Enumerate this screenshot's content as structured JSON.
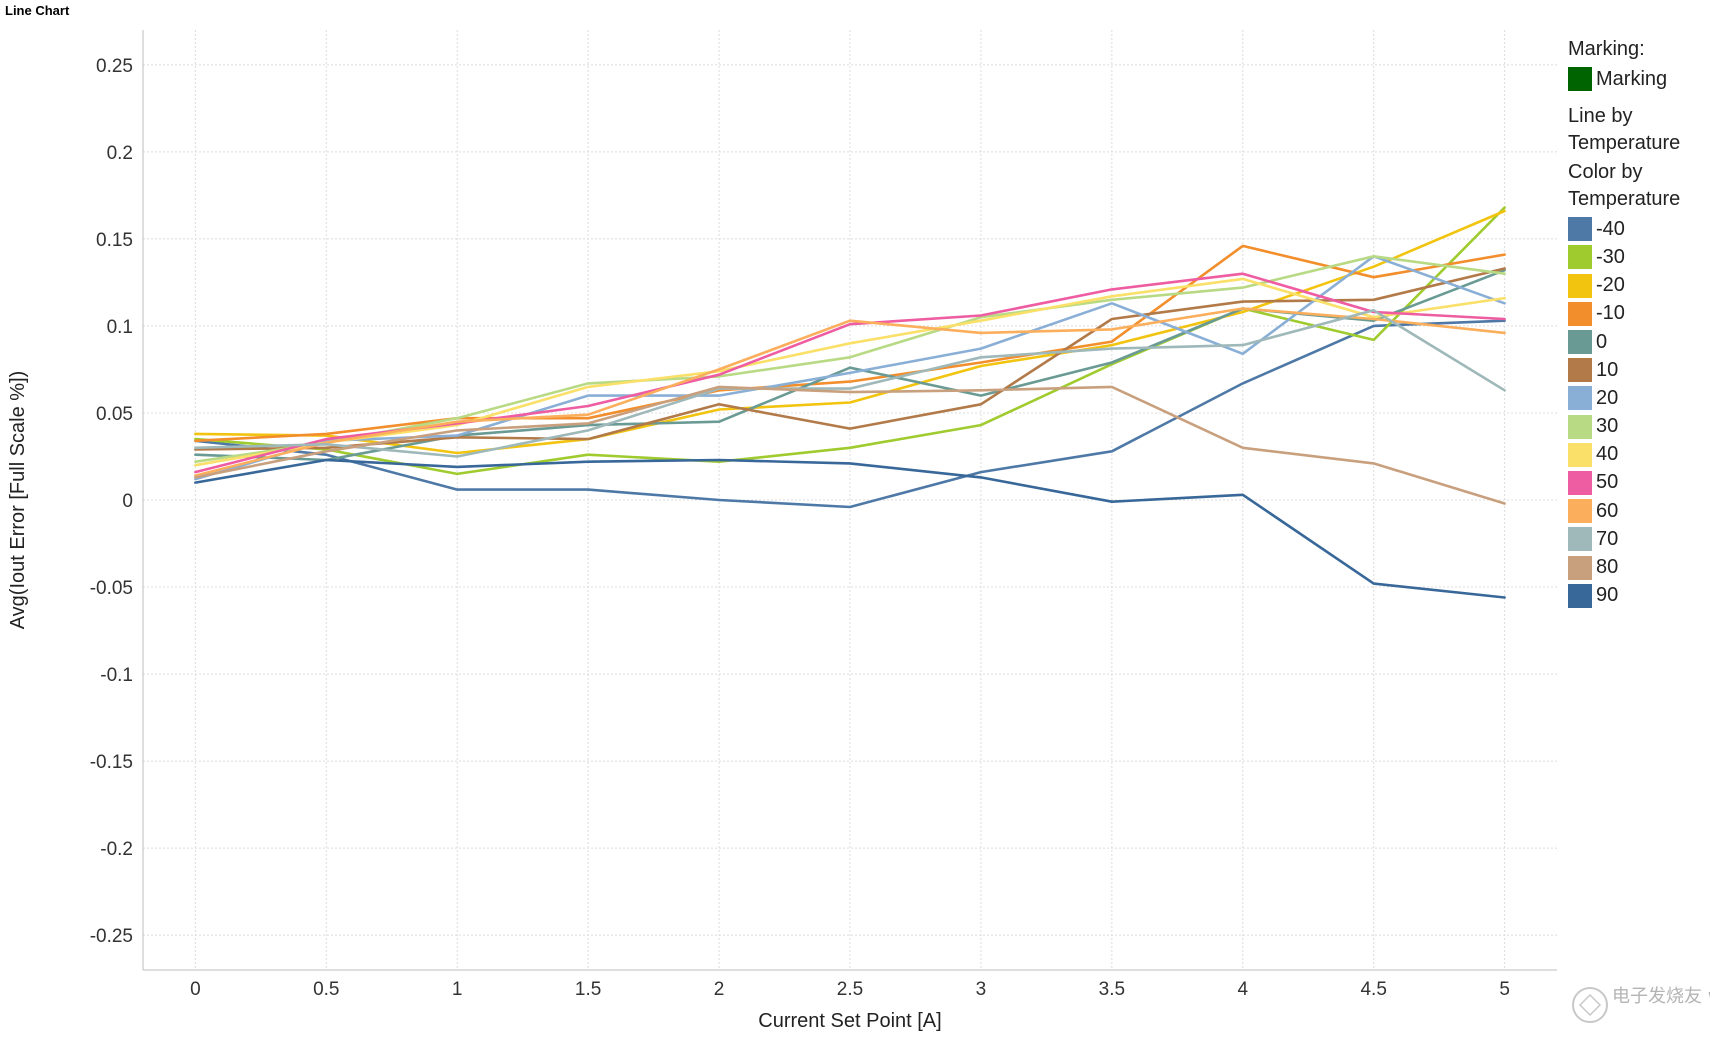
{
  "title": "Line Chart",
  "legend": {
    "marking_heading": "Marking:",
    "marking_label": "Marking",
    "marking_color": "#006400",
    "line_by_heading_1": "Line by",
    "line_by_heading_2": "Temperature",
    "color_by_heading_1": "Color by",
    "color_by_heading_2": "Temperature"
  },
  "watermark": "电子发烧友 www.elecfans.com",
  "chart_data": {
    "type": "line",
    "title": "",
    "xlabel": "Current Set Point [A]",
    "ylabel": "Avg(Iout Error [Full Scale %])",
    "x": [
      0,
      0.5,
      1,
      1.5,
      2,
      2.5,
      3,
      3.5,
      4,
      4.5,
      5
    ],
    "xlim": [
      -0.2,
      5.2
    ],
    "ylim": [
      -0.27,
      0.27
    ],
    "xticks": [
      0,
      0.5,
      1,
      1.5,
      2,
      2.5,
      3,
      3.5,
      4,
      4.5,
      5
    ],
    "xtick_labels": [
      "0",
      "0.5",
      "1",
      "1.5",
      "2",
      "2.5",
      "3",
      "3.5",
      "4",
      "4.5",
      "5"
    ],
    "yticks": [
      0.25,
      0.2,
      0.15,
      0.1,
      0.05,
      0,
      -0.05,
      -0.1,
      -0.15,
      -0.2,
      -0.25
    ],
    "ytick_labels": [
      "0.25",
      "0.2",
      "0.15",
      "0.1",
      "0.05",
      "0",
      "-0.05",
      "-0.1",
      "-0.15",
      "-0.2",
      "-0.25"
    ],
    "grid": true,
    "legend_position": "right",
    "series": [
      {
        "name": "-40",
        "color": "#4E79A7",
        "values": [
          0.034,
          0.026,
          0.006,
          0.006,
          0.0,
          -0.004,
          0.016,
          0.028,
          0.067,
          0.1,
          0.103
        ]
      },
      {
        "name": "-30",
        "color": "#A0CB2F",
        "values": [
          0.035,
          0.029,
          0.015,
          0.026,
          0.022,
          0.03,
          0.043,
          0.078,
          0.11,
          0.092,
          0.168
        ]
      },
      {
        "name": "-20",
        "color": "#F2C40F",
        "values": [
          0.038,
          0.037,
          0.027,
          0.035,
          0.052,
          0.056,
          0.077,
          0.089,
          0.108,
          0.134,
          0.166
        ]
      },
      {
        "name": "-10",
        "color": "#F28E2B",
        "values": [
          0.034,
          0.038,
          0.047,
          0.047,
          0.063,
          0.068,
          0.079,
          0.091,
          0.146,
          0.128,
          0.141
        ]
      },
      {
        "name": "0",
        "color": "#6A9A94",
        "values": [
          0.026,
          0.023,
          0.037,
          0.043,
          0.045,
          0.076,
          0.06,
          0.079,
          0.11,
          0.103,
          0.132
        ]
      },
      {
        "name": "10",
        "color": "#B37A49",
        "values": [
          0.029,
          0.03,
          0.036,
          0.035,
          0.055,
          0.041,
          0.055,
          0.104,
          0.114,
          0.115,
          0.133
        ]
      },
      {
        "name": "20",
        "color": "#8AAFD6",
        "values": [
          0.012,
          0.034,
          0.037,
          0.06,
          0.06,
          0.073,
          0.087,
          0.113,
          0.084,
          0.14,
          0.113
        ]
      },
      {
        "name": "30",
        "color": "#B9DA84",
        "values": [
          0.022,
          0.033,
          0.047,
          0.067,
          0.071,
          0.082,
          0.105,
          0.115,
          0.122,
          0.14,
          0.13
        ]
      },
      {
        "name": "40",
        "color": "#FADF68",
        "values": [
          0.02,
          0.033,
          0.043,
          0.065,
          0.074,
          0.09,
          0.103,
          0.117,
          0.127,
          0.105,
          0.116
        ]
      },
      {
        "name": "50",
        "color": "#EE5CA2",
        "values": [
          0.016,
          0.035,
          0.044,
          0.054,
          0.072,
          0.101,
          0.106,
          0.121,
          0.13,
          0.108,
          0.104
        ]
      },
      {
        "name": "60",
        "color": "#FBAE5C",
        "values": [
          0.014,
          0.033,
          0.045,
          0.049,
          0.075,
          0.103,
          0.096,
          0.098,
          0.11,
          0.104,
          0.096
        ]
      },
      {
        "name": "70",
        "color": "#9FB8B9",
        "values": [
          0.03,
          0.032,
          0.025,
          0.04,
          0.064,
          0.064,
          0.082,
          0.087,
          0.089,
          0.109,
          0.063
        ]
      },
      {
        "name": "80",
        "color": "#C9A07E",
        "values": [
          0.013,
          0.028,
          0.04,
          0.044,
          0.065,
          0.062,
          0.063,
          0.065,
          0.03,
          0.021,
          -0.002
        ]
      },
      {
        "name": "90",
        "color": "#386799",
        "values": [
          0.01,
          0.023,
          0.019,
          0.022,
          0.023,
          0.021,
          0.013,
          -0.001,
          0.003,
          -0.048,
          -0.056
        ]
      }
    ]
  }
}
